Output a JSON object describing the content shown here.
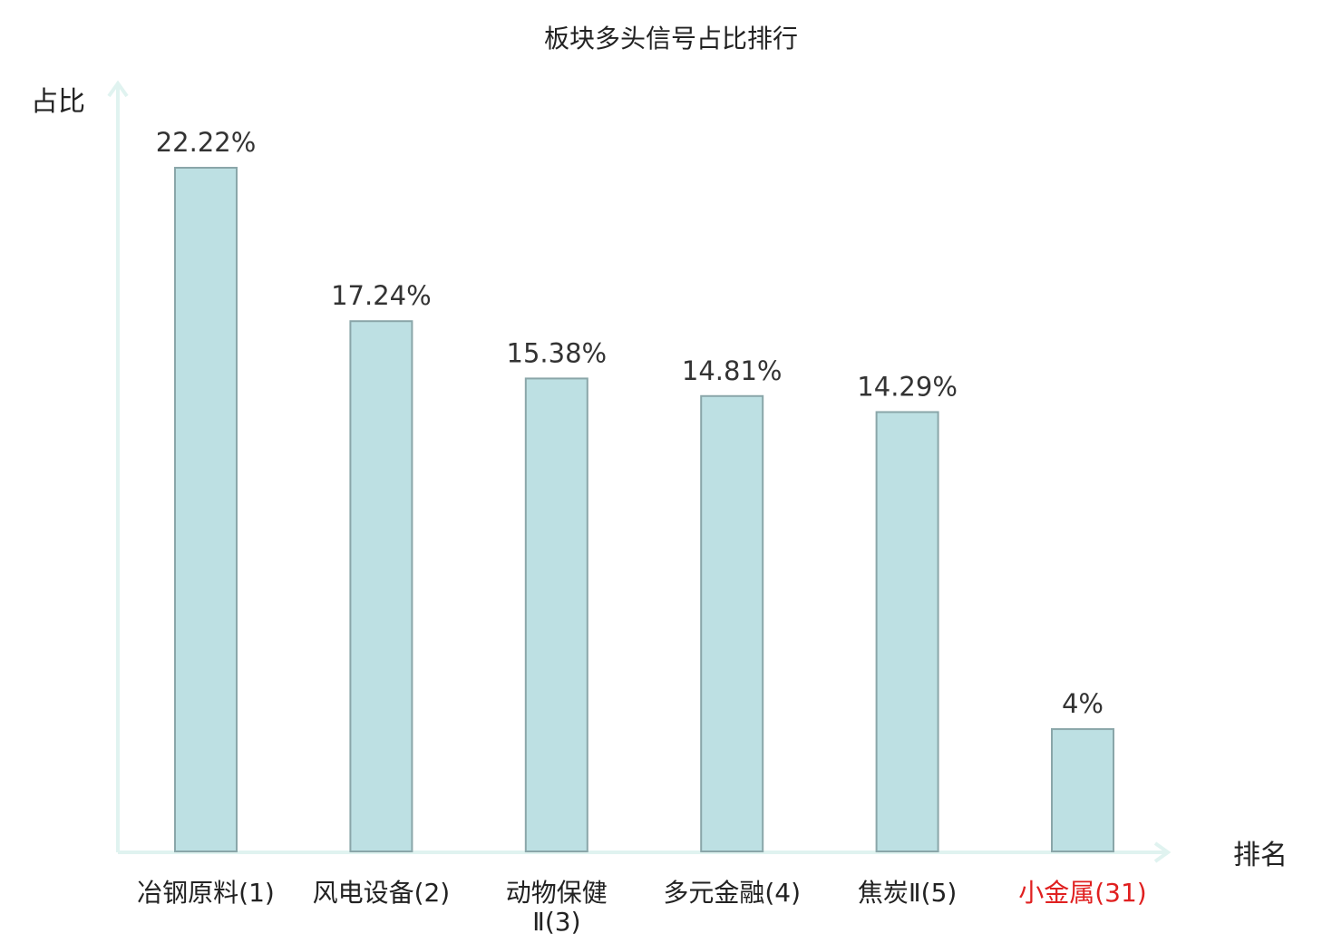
{
  "chart_data": {
    "type": "bar",
    "title": "板块多头信号占比排行",
    "ylabel": "占比",
    "xlabel": "排名",
    "categories": [
      {
        "lines": [
          "冶钢原料(1)"
        ],
        "highlight": false
      },
      {
        "lines": [
          "风电设备(2)"
        ],
        "highlight": false
      },
      {
        "lines": [
          "动物保健",
          "Ⅱ(3)"
        ],
        "highlight": false
      },
      {
        "lines": [
          "多元金融(4)"
        ],
        "highlight": false
      },
      {
        "lines": [
          "焦炭Ⅱ(5)"
        ],
        "highlight": false
      },
      {
        "lines": [
          "小金属(31)"
        ],
        "highlight": true
      }
    ],
    "values": [
      22.22,
      17.24,
      15.38,
      14.81,
      14.29,
      4
    ],
    "value_labels": [
      "22.22%",
      "17.24%",
      "15.38%",
      "14.81%",
      "14.29%",
      "4%"
    ],
    "ylim": [
      0,
      24.5
    ],
    "grid": false,
    "colors": {
      "bar_fill": "#bde0e3",
      "bar_stroke": "#8aa6a9",
      "axis": "#e0f3f0",
      "text": "#222222",
      "highlight": "#e02020"
    }
  }
}
